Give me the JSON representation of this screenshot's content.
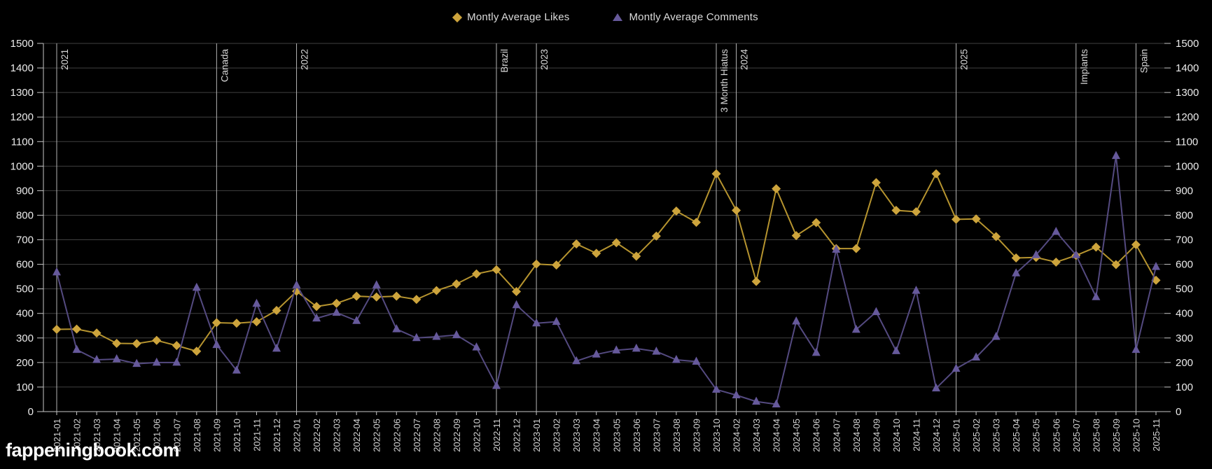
{
  "legend": [
    {
      "label": "Montly Average Likes",
      "marker": "diamond",
      "color": "#CDA43C"
    },
    {
      "label": "Montly Average Comments",
      "marker": "triangle",
      "color": "#66599B"
    }
  ],
  "watermark": "fappeningbook.com",
  "colors": {
    "background": "#000000",
    "grid": "#404040",
    "axis": "#c8c8c8",
    "annotation_line": "#b4b4b4",
    "annotation_text": "#d8d8d8",
    "y_tick_text": "#ebebeb",
    "x_tick_text": "#d4d4d4",
    "legend_text": "#dcdcdc",
    "watermark_text": "#ffffff"
  },
  "chart_data": {
    "type": "line",
    "title": "",
    "xlabel": "",
    "ylabel": "",
    "ylim": [
      0,
      1500
    ],
    "ytick_step": 100,
    "grid": "horizontal",
    "legend_position": "top-center",
    "dual_y_axis": true,
    "categories": [
      "2021-01",
      "2021-02",
      "2021-03",
      "2021-04",
      "2021-05",
      "2021-06",
      "2021-07",
      "2021-08",
      "2021-09",
      "2021-10",
      "2021-11",
      "2021-12",
      "2022-01",
      "2022-02",
      "2022-03",
      "2022-04",
      "2022-05",
      "2022-06",
      "2022-07",
      "2022-08",
      "2022-09",
      "2022-10",
      "2022-11",
      "2022-12",
      "2023-01",
      "2023-02",
      "2023-03",
      "2023-04",
      "2023-05",
      "2023-06",
      "2023-07",
      "2023-08",
      "2023-09",
      "2023-10",
      "2024-02",
      "2024-03",
      "2024-04",
      "2024-05",
      "2024-06",
      "2024-07",
      "2024-08",
      "2024-09",
      "2024-10",
      "2024-11",
      "2024-12",
      "2025-01",
      "2025-02",
      "2025-03",
      "2025-04",
      "2025-05",
      "2025-06",
      "2025-07",
      "2025-08",
      "2025-09",
      "2025-10",
      "2025-11"
    ],
    "series": [
      {
        "name": "Montly Average Likes",
        "marker": "diamond",
        "marker_color": "#CDA43C",
        "line_color": "#B6942F",
        "values": [
          335,
          336,
          320,
          278,
          277,
          290,
          269,
          246,
          362,
          360,
          366,
          412,
          490,
          428,
          441,
          470,
          467,
          470,
          457,
          493,
          520,
          561,
          578,
          489,
          601,
          597,
          683,
          645,
          688,
          633,
          715,
          817,
          771,
          969,
          820,
          530,
          908,
          717,
          770,
          664,
          664,
          933,
          820,
          814,
          969,
          783,
          785,
          713,
          626,
          628,
          609,
          636,
          670,
          599,
          680,
          535
        ]
      },
      {
        "name": "Montly Average Comments",
        "marker": "triangle",
        "marker_color": "#66599B",
        "line_color": "#544A80",
        "values": [
          568,
          252,
          211,
          214,
          195,
          200,
          200,
          505,
          272,
          168,
          440,
          257,
          515,
          380,
          403,
          370,
          515,
          336,
          300,
          305,
          312,
          262,
          105,
          434,
          360,
          366,
          206,
          233,
          250,
          257,
          245,
          211,
          204,
          90,
          67,
          41,
          30,
          368,
          240,
          660,
          334,
          406,
          247,
          493,
          95,
          175,
          221,
          305,
          564,
          638,
          733,
          638,
          467,
          1042,
          252,
          590
        ]
      }
    ],
    "annotations": [
      {
        "label": "2021",
        "month": "2021-01"
      },
      {
        "label": "Canada",
        "month": "2021-09"
      },
      {
        "label": "2022",
        "month": "2022-01"
      },
      {
        "label": "Brazil",
        "month": "2022-11"
      },
      {
        "label": "2023",
        "month": "2023-01"
      },
      {
        "label": "3 Month Hiatus",
        "month": "2023-10"
      },
      {
        "label": "2024",
        "month": "2024-02"
      },
      {
        "label": "2025",
        "month": "2025-01"
      },
      {
        "label": "Implants",
        "month": "2025-07"
      },
      {
        "label": "Spain",
        "month": "2025-10"
      }
    ]
  }
}
